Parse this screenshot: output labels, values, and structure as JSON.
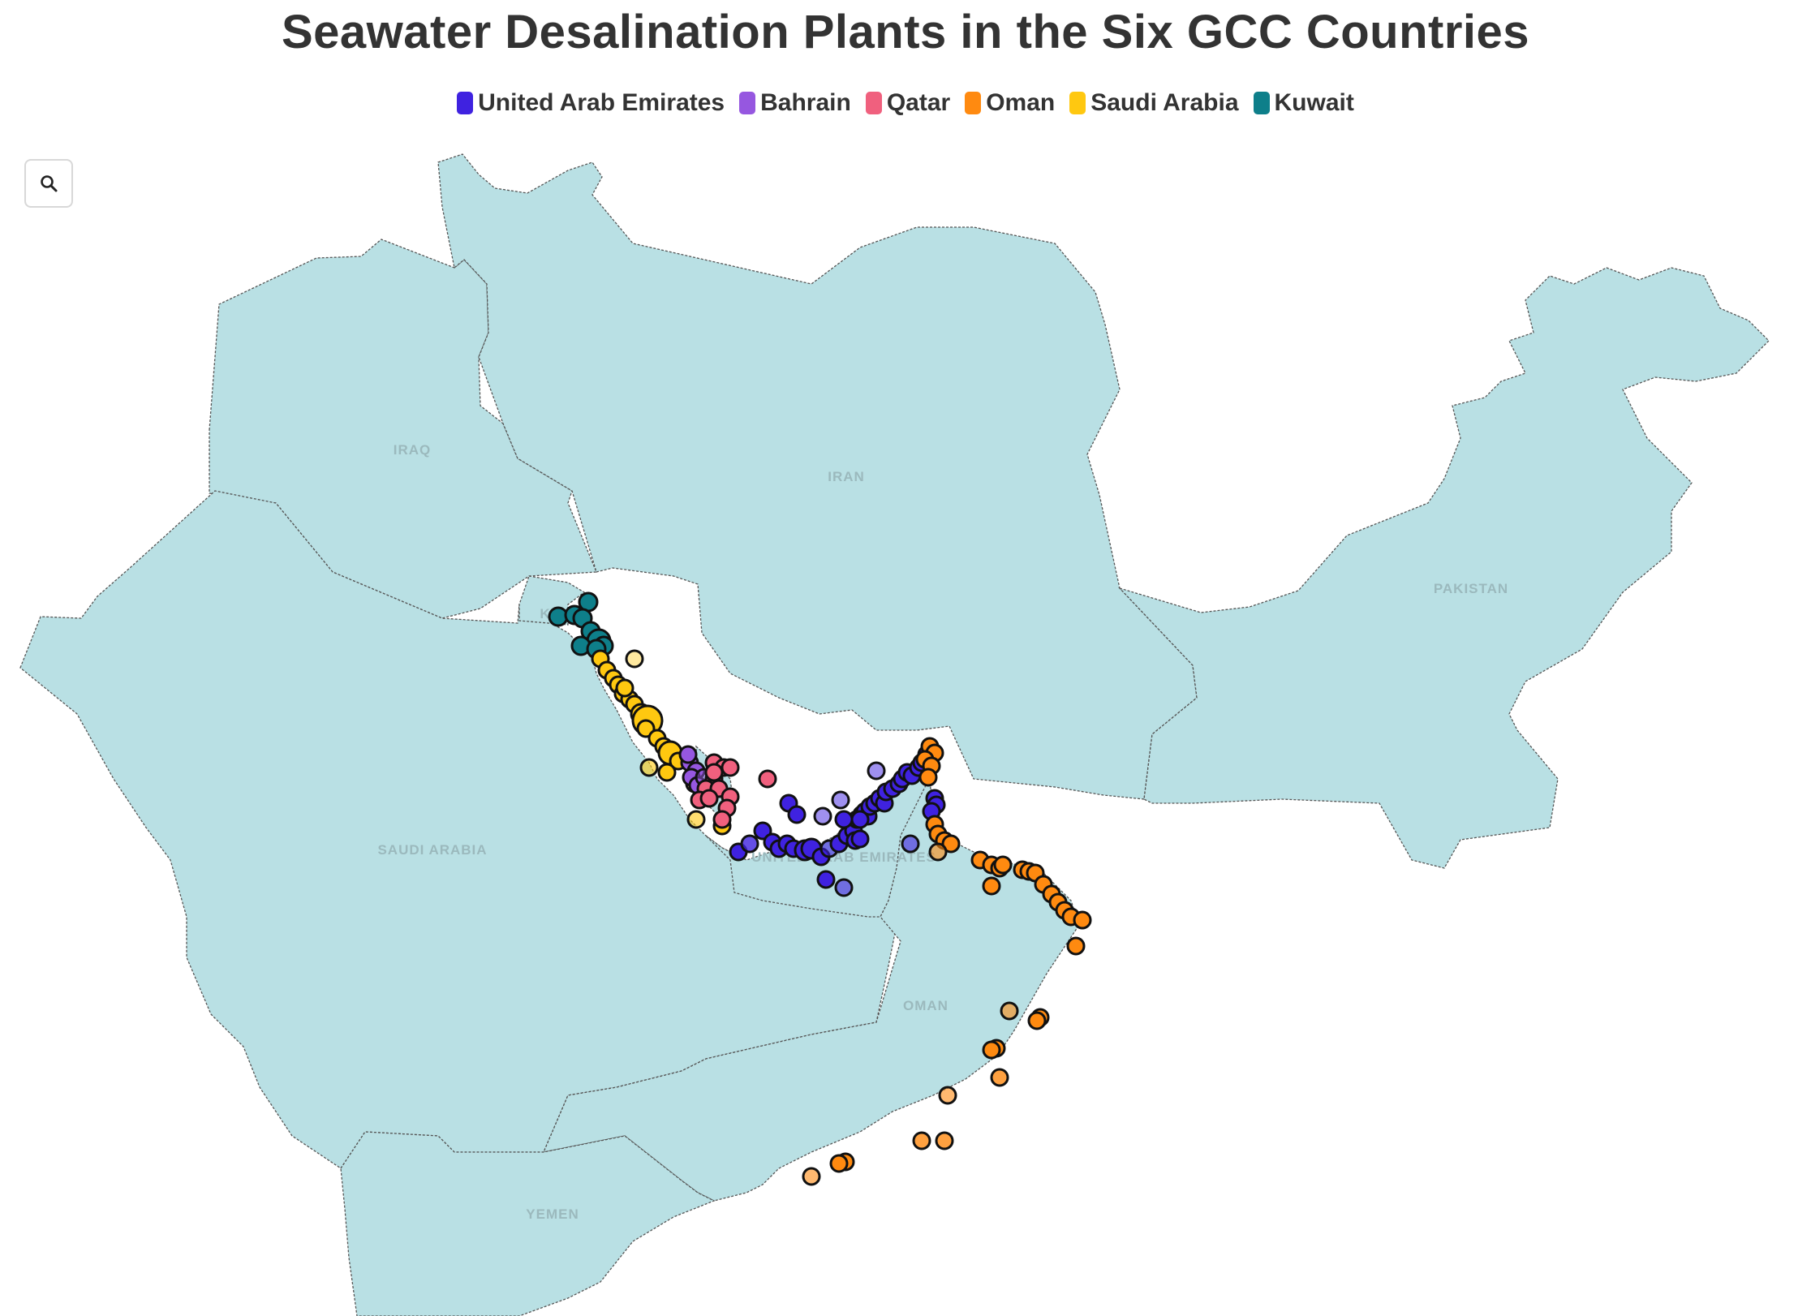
{
  "title": "Seawater Desalination Plants in the Six GCC Countries",
  "legend": [
    {
      "label": "United Arab Emirates",
      "color": "#3f22e0"
    },
    {
      "label": "Bahrain",
      "color": "#9657e0"
    },
    {
      "label": "Qatar",
      "color": "#f0607e"
    },
    {
      "label": "Oman",
      "color": "#ff8a10"
    },
    {
      "label": "Saudi Arabia",
      "color": "#ffc810"
    },
    {
      "label": "Kuwait",
      "color": "#0e7f8a"
    }
  ],
  "search": {
    "icon": "search-icon"
  },
  "countries": {
    "iraq": "IRAQ",
    "iran": "IRAN",
    "pakistan": "PAKISTAN",
    "saudi": "SAUDI ARABIA",
    "uae": "UNITED ARAB EMIRATES",
    "oman": "OMAN",
    "yemen": "YEMEN",
    "kuwait": "K"
  }
}
